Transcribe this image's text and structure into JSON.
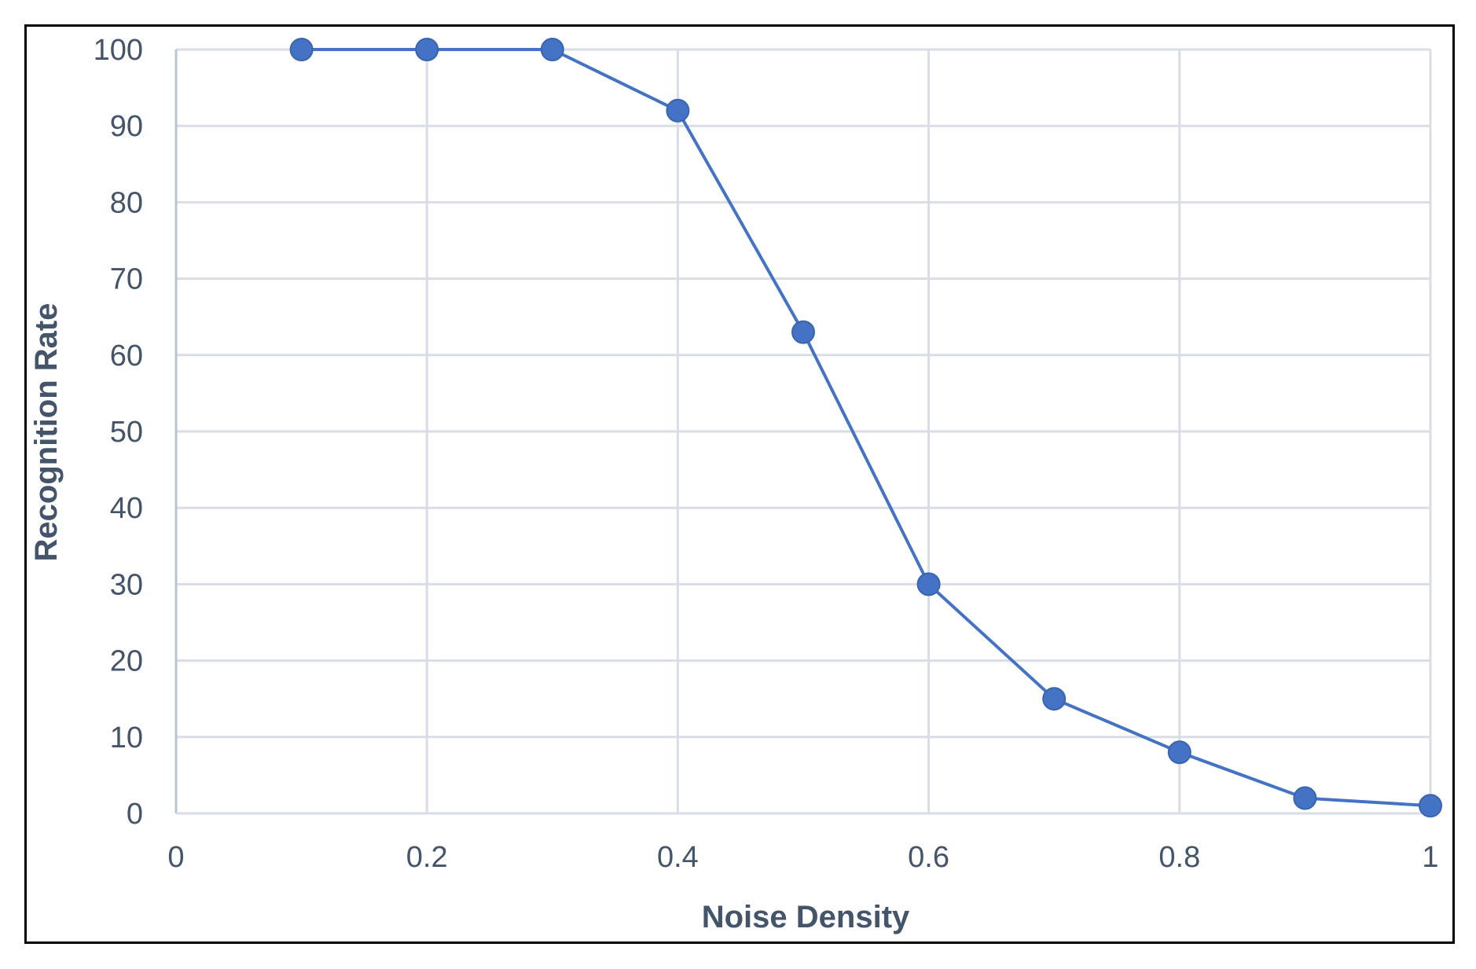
{
  "chart_data": {
    "type": "scatter",
    "xlabel": "Noise Density",
    "ylabel": "Recognition Rate",
    "xlim": [
      0,
      1
    ],
    "ylim": [
      0,
      100
    ],
    "x_ticks": [
      0,
      0.2,
      0.4,
      0.6,
      0.8,
      1
    ],
    "x_tick_labels": [
      "0",
      "0.2",
      "0.4",
      "0.6",
      "0.8",
      "1"
    ],
    "y_ticks": [
      0,
      10,
      20,
      30,
      40,
      50,
      60,
      70,
      80,
      90,
      100
    ],
    "y_tick_labels": [
      "0",
      "10",
      "20",
      "30",
      "40",
      "50",
      "60",
      "70",
      "80",
      "90",
      "100"
    ],
    "grid": true,
    "series": [
      {
        "x": [
          0.1,
          0.2,
          0.3,
          0.4,
          0.5,
          0.6,
          0.7,
          0.8,
          0.9,
          1.0
        ],
        "y": [
          100,
          100,
          100,
          92,
          63,
          30,
          15,
          8,
          2,
          1
        ],
        "color": "#4472c4",
        "mode": "lines+markers"
      }
    ]
  }
}
